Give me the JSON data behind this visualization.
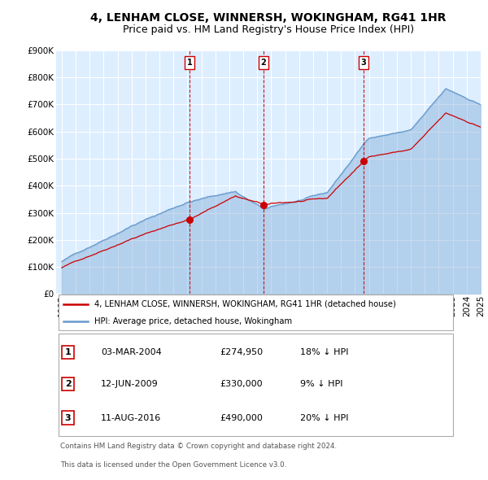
{
  "title": "4, LENHAM CLOSE, WINNERSH, WOKINGHAM, RG41 1HR",
  "subtitle": "Price paid vs. HM Land Registry's House Price Index (HPI)",
  "footnote1": "Contains HM Land Registry data © Crown copyright and database right 2024.",
  "footnote2": "This data is licensed under the Open Government Licence v3.0.",
  "legend_line1": "4, LENHAM CLOSE, WINNERSH, WOKINGHAM, RG41 1HR (detached house)",
  "legend_line2": "HPI: Average price, detached house, Wokingham",
  "sales": [
    {
      "num": 1,
      "date": "03-MAR-2004",
      "price": "£274,950",
      "pct": "18% ↓ HPI",
      "year": 2004.17
    },
    {
      "num": 2,
      "date": "12-JUN-2009",
      "price": "£330,000",
      "pct": "9% ↓ HPI",
      "year": 2009.45
    },
    {
      "num": 3,
      "date": "11-AUG-2016",
      "price": "£490,000",
      "pct": "20% ↓ HPI",
      "year": 2016.62
    }
  ],
  "hpi_color": "#6699cc",
  "price_color": "#cc0000",
  "vline_color": "#cc0000",
  "ylim": [
    0,
    900000
  ],
  "yticks": [
    0,
    100000,
    200000,
    300000,
    400000,
    500000,
    600000,
    700000,
    800000,
    900000
  ],
  "xlim": [
    1994.6,
    2025.0
  ],
  "xticks": [
    1995,
    1996,
    1997,
    1998,
    1999,
    2000,
    2001,
    2002,
    2003,
    2004,
    2005,
    2006,
    2007,
    2008,
    2009,
    2010,
    2011,
    2012,
    2013,
    2014,
    2015,
    2016,
    2017,
    2018,
    2019,
    2020,
    2021,
    2022,
    2023,
    2024,
    2025
  ],
  "bg_color": "#ffffff",
  "plot_bg_color": "#ddeeff",
  "grid_color": "#ffffff",
  "title_fontsize": 10,
  "subtitle_fontsize": 9,
  "axis_fontsize": 7.5
}
